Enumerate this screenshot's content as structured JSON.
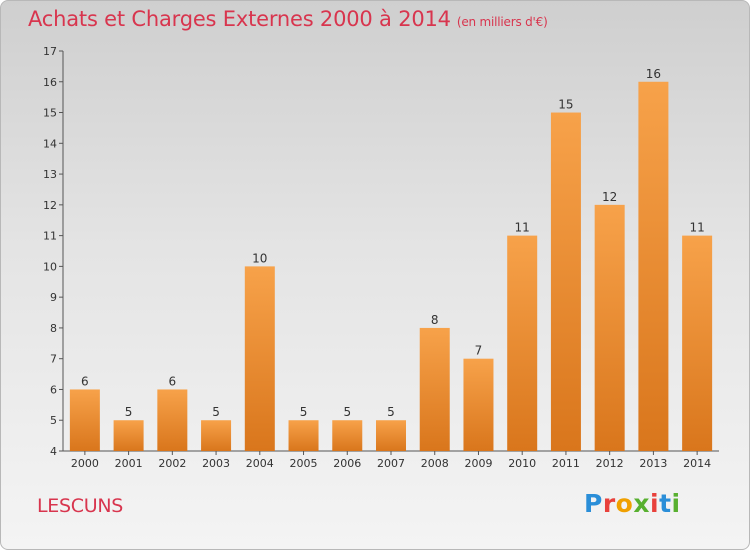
{
  "header": {
    "title": "Achats et Charges Externes 2000 à 2014",
    "subtitle": "(en milliers d'€)"
  },
  "footer": {
    "commune": "LESCUNS",
    "brand_letters": [
      "P",
      "r",
      "o",
      "x",
      "i",
      "t",
      "i"
    ]
  },
  "colors": {
    "bar_light": "#f7a24a",
    "bar_dark": "#d9761c",
    "title": "#d8354e"
  },
  "chart_data": {
    "type": "bar",
    "title": "Achats et Charges Externes 2000 à 2014",
    "subtitle": "(en milliers d'€)",
    "categories": [
      "2000",
      "2001",
      "2002",
      "2003",
      "2004",
      "2005",
      "2006",
      "2007",
      "2008",
      "2009",
      "2010",
      "2011",
      "2012",
      "2013",
      "2014"
    ],
    "values": [
      6,
      5,
      6,
      5,
      10,
      5,
      5,
      5,
      8,
      7,
      11,
      15,
      12,
      16,
      11
    ],
    "ylim": [
      4,
      17
    ],
    "yticks": [
      4,
      5,
      6,
      7,
      8,
      9,
      10,
      11,
      12,
      13,
      14,
      15,
      16,
      17
    ],
    "grid": false,
    "xlabel": "",
    "ylabel": ""
  }
}
